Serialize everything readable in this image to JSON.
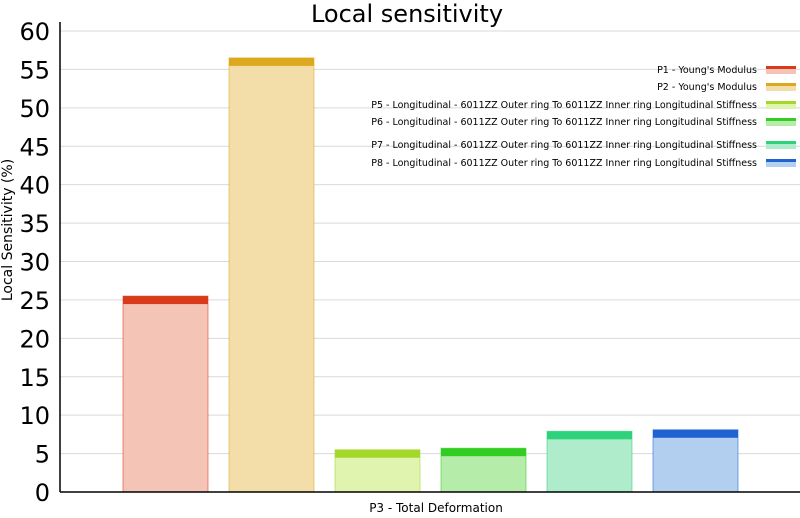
{
  "chart_data": {
    "type": "bar",
    "title": "Local sensitivity",
    "xlabel": "P3 - Total Deformation",
    "ylabel": "Local Sensitivity (%)",
    "ylim": [
      0,
      62
    ],
    "yticks": [
      0,
      5,
      10,
      15,
      20,
      25,
      30,
      35,
      40,
      45,
      50,
      55,
      60
    ],
    "grid": true,
    "legend_position": "top-right",
    "series": [
      {
        "name": "P1 - Young's Modulus",
        "value": 25.5,
        "color": "#d93a1c",
        "fill": "#f4c4b6"
      },
      {
        "name": "P2 - Young's Modulus",
        "value": 56.5,
        "color": "#dba81e",
        "fill": "#f3deaa"
      },
      {
        "name": "P5 - Longitudinal - 6011ZZ Outer ring To 6011ZZ Inner ring Longitudinal Stiffness",
        "value": 5.5,
        "color": "#a3d82b",
        "fill": "#e0f4b0"
      },
      {
        "name": "P6 - Longitudinal - 6011ZZ Outer ring To 6011ZZ Inner ring Longitudinal Stiffness",
        "value": 5.7,
        "color": "#33cc22",
        "fill": "#b6ecaa"
      },
      {
        "name": "P7 - Longitudinal - 6011ZZ Outer ring To 6011ZZ Inner ring Longitudinal Stiffness",
        "value": 7.9,
        "color": "#2ed27a",
        "fill": "#aeeccb"
      },
      {
        "name": "P8 - Longitudinal - 6011ZZ Outer ring To 6011ZZ Inner ring Longitudinal Stiffness",
        "value": 8.1,
        "color": "#1f63d1",
        "fill": "#b3cff0"
      }
    ]
  }
}
